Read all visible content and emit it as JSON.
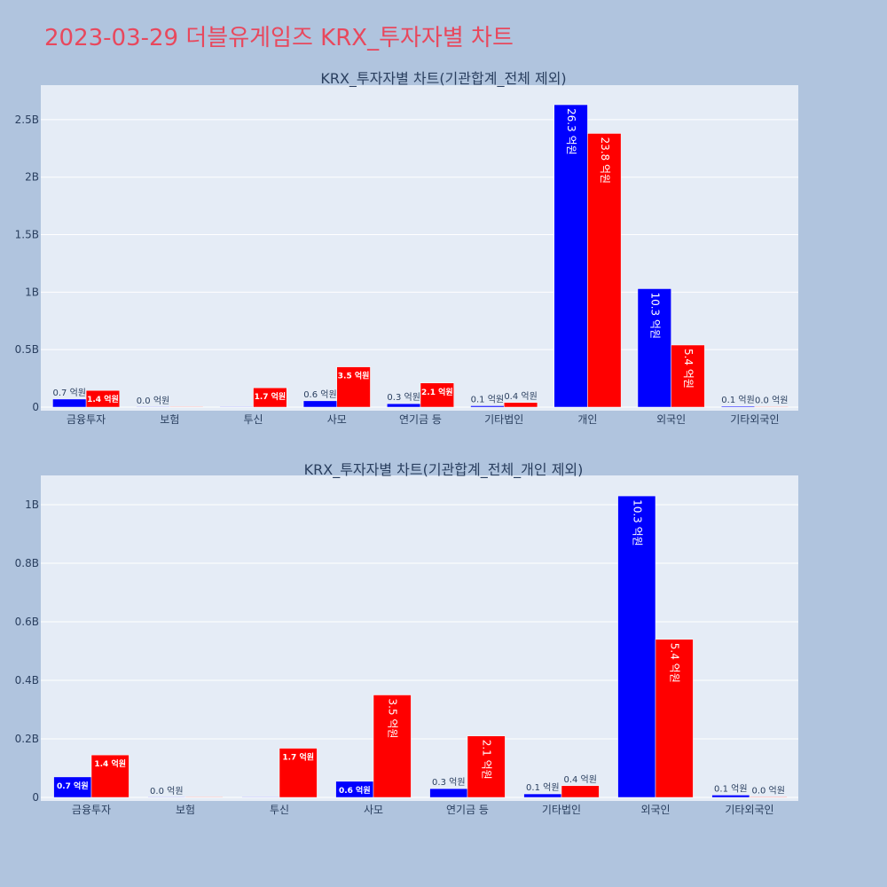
{
  "header": {
    "title": "2023-03-29 더블유게임즈 KRX_투자자별 차트"
  },
  "colors": {
    "buy": "#0000ff",
    "sell": "#ff0000",
    "title": "#e8485d",
    "background": "#b0c4de",
    "plot_bg": "#e5ecf6"
  },
  "chart_data": [
    {
      "type": "bar",
      "title": "KRX_투자자별 차트(기관합계_전체 제외)",
      "categories": [
        "금융투자",
        "보험",
        "투신",
        "사모",
        "연기금 등",
        "기타법인",
        "개인",
        "외국인",
        "기타외국인"
      ],
      "series": [
        {
          "values": [
            70000000,
            0,
            0,
            55000000,
            30000000,
            12000000,
            2630000000,
            1030000000,
            8000000
          ],
          "labels": [
            "0.7 억원",
            "0.0 억원",
            "",
            "0.6 억원",
            "0.3 억원",
            "0.1 억원",
            "26.3 억원",
            "10.3 억원",
            "0.1 억원"
          ]
        },
        {
          "values": [
            145000000,
            0,
            168000000,
            350000000,
            210000000,
            40000000,
            2380000000,
            540000000,
            2000000
          ],
          "labels": [
            "1.4 억원",
            "",
            "1.7 억원",
            "3.5 억원",
            "2.1 억원",
            "0.4 억원",
            "23.8 억원",
            "5.4 억원",
            "0.0 억원"
          ]
        }
      ],
      "ylim": [
        0,
        2800000000
      ],
      "yticks": [
        0,
        500000000,
        1000000000,
        1500000000,
        2000000000,
        2500000000
      ],
      "ytick_labels": [
        "0",
        "0.5B",
        "1B",
        "1.5B",
        "2B",
        "2.5B"
      ],
      "grid": true
    },
    {
      "type": "bar",
      "title": "KRX_투자자별 차트(기관합계_전체_개인 제외)",
      "categories": [
        "금융투자",
        "보험",
        "투신",
        "사모",
        "연기금 등",
        "기타법인",
        "외국인",
        "기타외국인"
      ],
      "series": [
        {
          "values": [
            70000000,
            0,
            0,
            55000000,
            30000000,
            12000000,
            1030000000,
            8000000
          ],
          "labels": [
            "0.7 억원",
            "0.0 억원",
            "",
            "0.6 억원",
            "0.3 억원",
            "0.1 억원",
            "10.3 억원",
            "0.1 억원"
          ]
        },
        {
          "values": [
            145000000,
            0,
            168000000,
            350000000,
            210000000,
            40000000,
            540000000,
            2000000
          ],
          "labels": [
            "1.4 억원",
            "",
            "1.7 억원",
            "3.5 억원",
            "2.1 억원",
            "0.4 억원",
            "5.4 억원",
            "0.0 억원"
          ]
        }
      ],
      "ylim": [
        0,
        1100000000
      ],
      "yticks": [
        0,
        200000000,
        400000000,
        600000000,
        800000000,
        1000000000
      ],
      "ytick_labels": [
        "0",
        "0.2B",
        "0.4B",
        "0.6B",
        "0.8B",
        "1B"
      ],
      "grid": true
    }
  ]
}
